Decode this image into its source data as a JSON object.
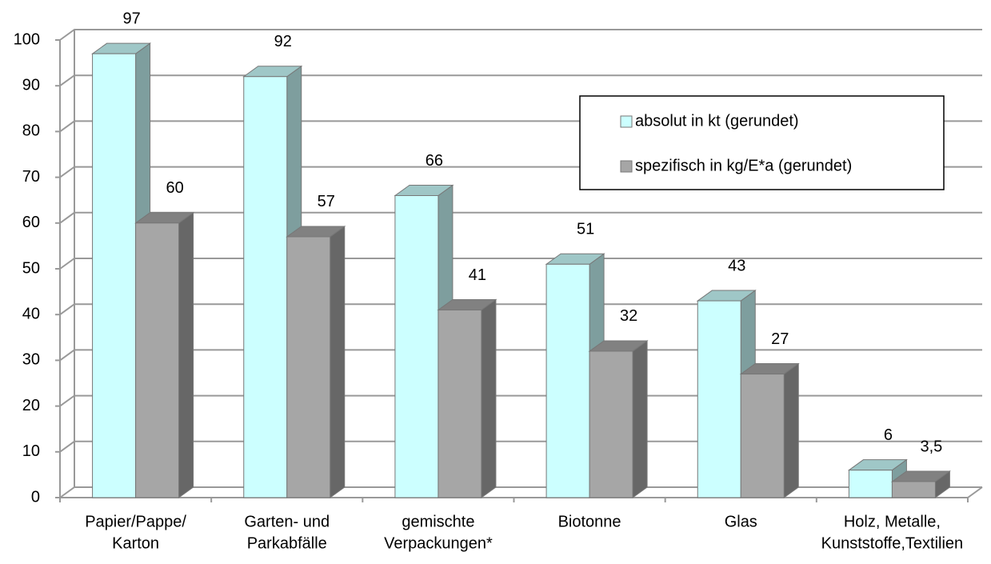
{
  "chart_data": {
    "type": "bar3d",
    "categories": [
      [
        "Papier/Pappe/",
        "Karton"
      ],
      [
        "Garten- und",
        "Parkabfälle"
      ],
      [
        "gemischte",
        "Verpackungen*"
      ],
      [
        "Biotonne"
      ],
      [
        "Glas"
      ],
      [
        "Holz, Metalle,",
        "Kunststoffe,Textilien"
      ]
    ],
    "series": [
      {
        "name": "absolut in kt (gerundet)",
        "color": "#ccffff",
        "values": [
          97,
          92,
          66,
          51,
          43,
          6
        ]
      },
      {
        "name": "spezifisch in kg/E*a (gerundet)",
        "color": "#a6a6a6",
        "values": [
          60,
          57,
          41,
          32,
          27,
          3.5
        ],
        "value_labels": [
          "60",
          "57",
          "41",
          "32",
          "27",
          "3,5"
        ]
      }
    ],
    "ylim": [
      0,
      100
    ],
    "yticks": [
      0,
      10,
      20,
      30,
      40,
      50,
      60,
      70,
      80,
      90,
      100
    ],
    "grid": true,
    "legend": "upper right"
  }
}
